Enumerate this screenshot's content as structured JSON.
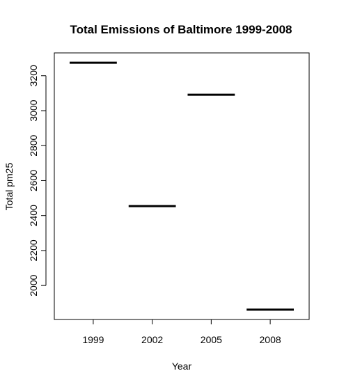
{
  "chart_data": {
    "type": "bar",
    "title": "Total Emissions of Baltimore 1999-2008",
    "xlabel": "Year",
    "ylabel": "Total pm25",
    "categories": [
      "1999",
      "2002",
      "2005",
      "2008"
    ],
    "values": [
      3274,
      2454,
      3091,
      1862
    ],
    "ylim": [
      1862,
      3274
    ],
    "yticks": [
      2000,
      2200,
      2400,
      2600,
      2800,
      3000,
      3200
    ],
    "grid": false,
    "legend": "none",
    "mark_style": "horizontal segment per category",
    "colors": {
      "line": "#000000",
      "frame": "#000000",
      "background": "#ffffff"
    }
  }
}
